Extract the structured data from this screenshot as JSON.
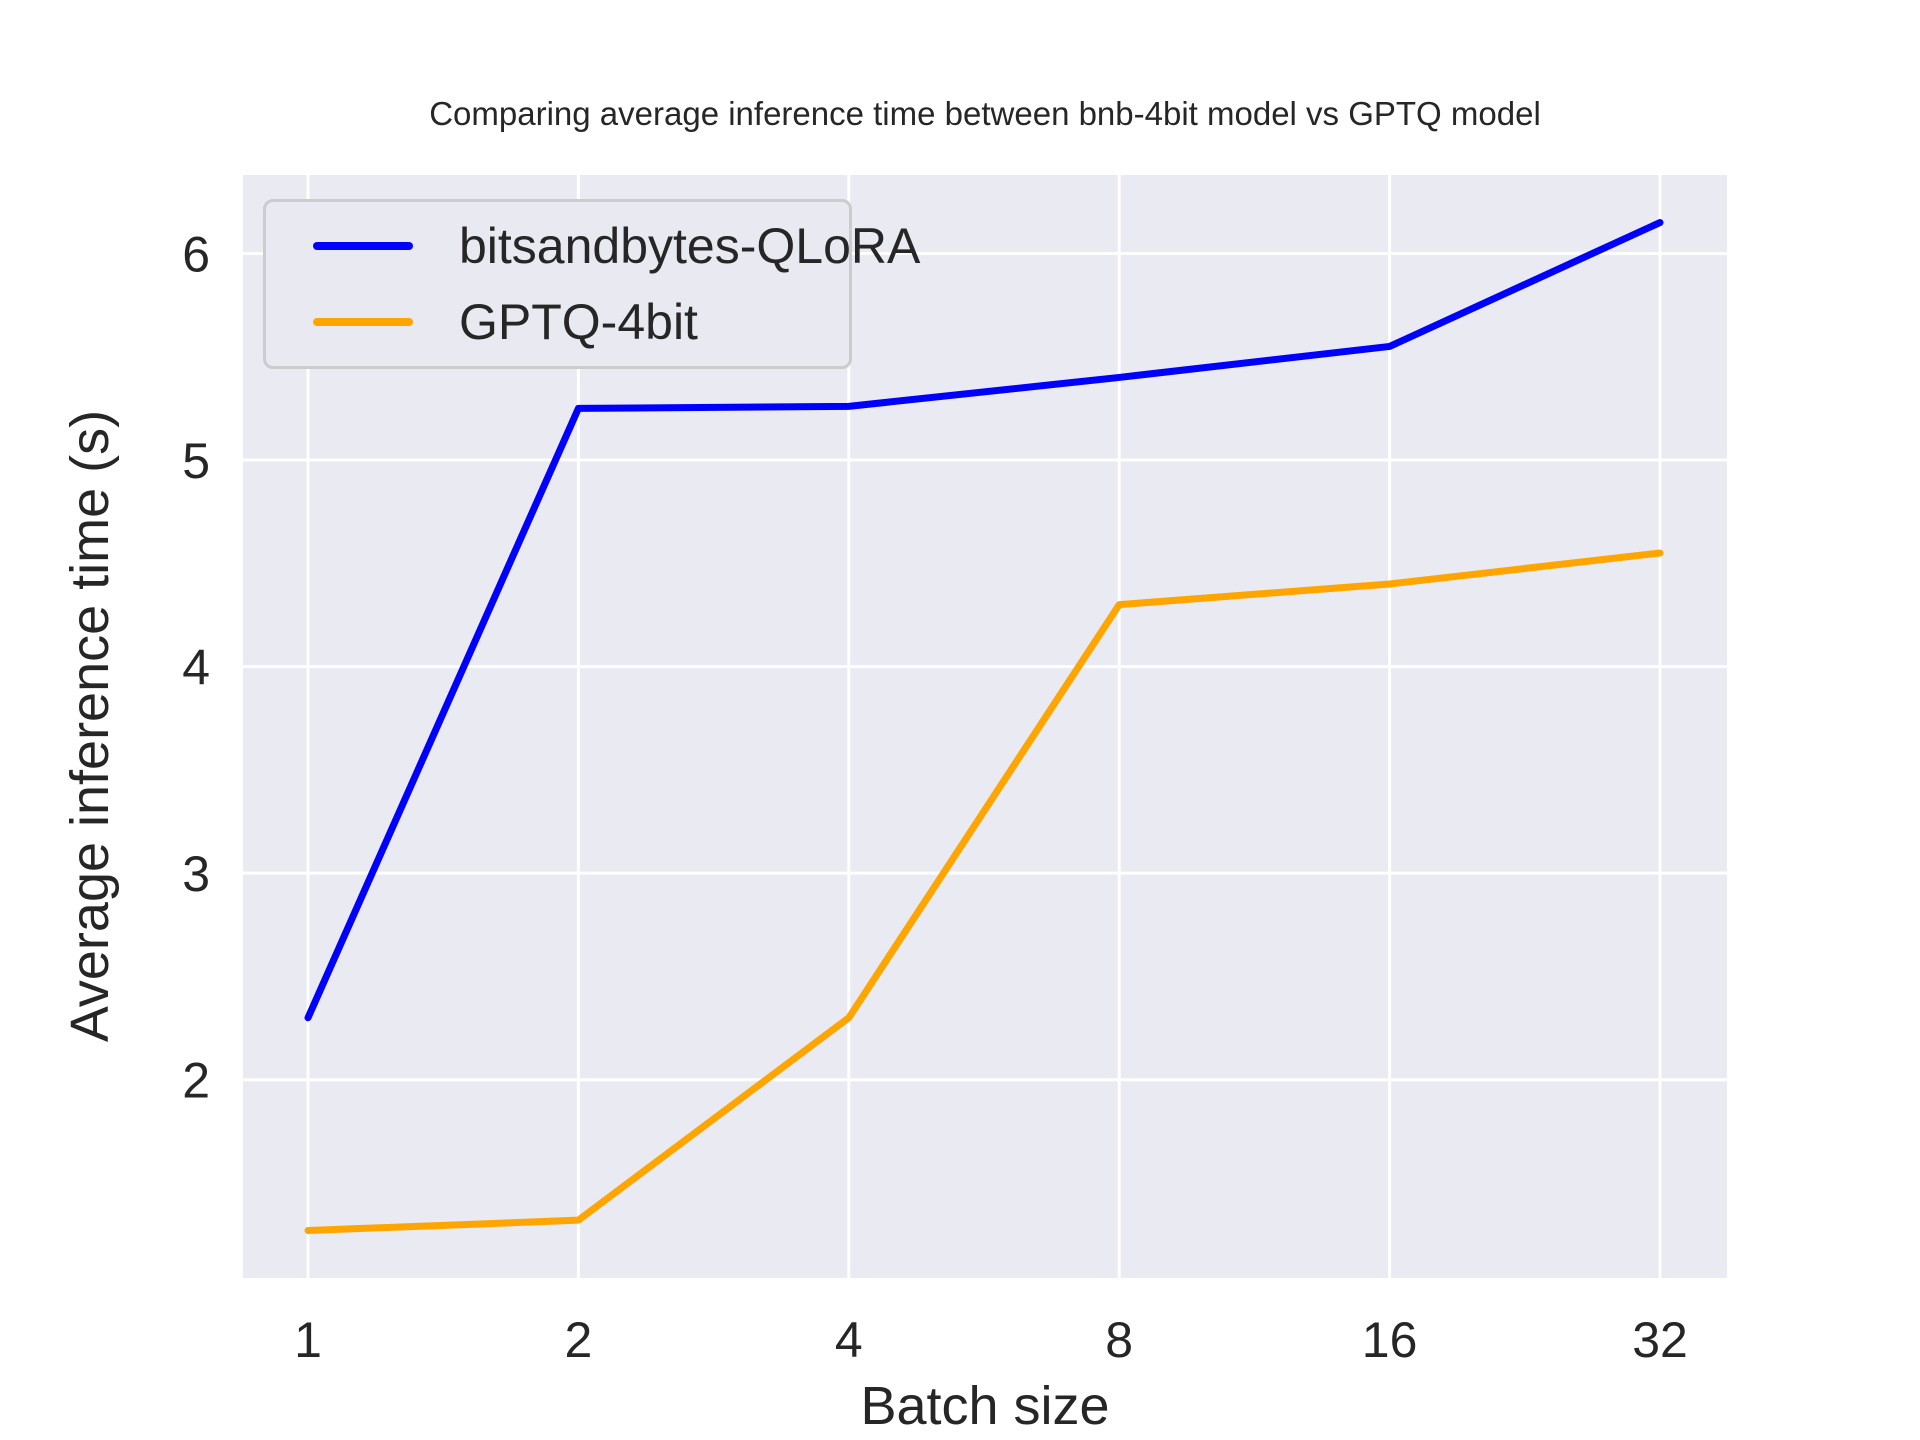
{
  "chart_data": {
    "type": "line",
    "title": "Comparing average inference time between bnb-4bit model vs GPTQ model",
    "xlabel": "Batch size",
    "ylabel": "Average inference time (s)",
    "categories": [
      "1",
      "2",
      "4",
      "8",
      "16",
      "32"
    ],
    "x_scale": "log2-categorical",
    "series": [
      {
        "name": "bitsandbytes-QLoRA",
        "color": "#0000ff",
        "values": [
          2.3,
          5.25,
          5.26,
          5.4,
          5.55,
          6.15
        ]
      },
      {
        "name": "GPTQ-4bit",
        "color": "#ffa500",
        "values": [
          1.27,
          1.32,
          2.3,
          4.3,
          4.4,
          4.55
        ]
      }
    ],
    "y_ticks": [
      2,
      3,
      4,
      5,
      6
    ],
    "ylim": [
      1.04,
      6.38
    ],
    "grid": true,
    "grid_color": "#ffffff",
    "plot_bg": "#eaeaf2",
    "text_color": "#262626",
    "legend_position": "upper left"
  }
}
